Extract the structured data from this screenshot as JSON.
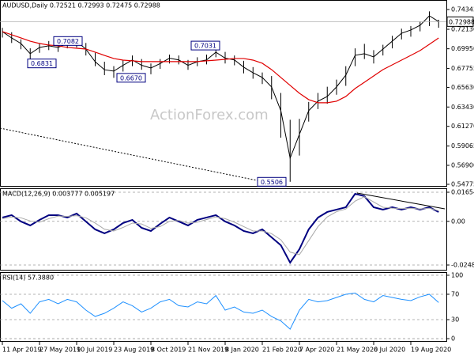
{
  "chart_data": [
    {
      "type": "candlestick",
      "title": "AUDUSD,Daily  0.72521 0.72993 0.72475 0.72988",
      "watermark": "ActionForex.com",
      "color": "#000000",
      "high": [
        0.723,
        0.718,
        0.71,
        0.7,
        0.706,
        0.7082,
        0.706,
        0.709,
        0.7082,
        0.706,
        0.695,
        0.685,
        0.68,
        0.687,
        0.692,
        0.688,
        0.683,
        0.688,
        0.693,
        0.692,
        0.687,
        0.69,
        0.693,
        0.7031,
        0.696,
        0.692,
        0.686,
        0.679,
        0.673,
        0.669,
        0.65,
        0.62,
        0.621,
        0.64,
        0.65,
        0.657,
        0.665,
        0.68,
        0.7,
        0.705,
        0.698,
        0.704,
        0.714,
        0.722,
        0.725,
        0.73,
        0.7414,
        0.732
      ],
      "low": [
        0.712,
        0.706,
        0.699,
        0.6831,
        0.695,
        0.698,
        0.696,
        0.7,
        0.701,
        0.692,
        0.68,
        0.67,
        0.667,
        0.674,
        0.68,
        0.676,
        0.671,
        0.677,
        0.683,
        0.682,
        0.676,
        0.68,
        0.682,
        0.69,
        0.683,
        0.681,
        0.672,
        0.666,
        0.66,
        0.643,
        0.6,
        0.5506,
        0.58,
        0.618,
        0.632,
        0.638,
        0.648,
        0.658,
        0.68,
        0.688,
        0.683,
        0.692,
        0.7,
        0.71,
        0.713,
        0.719,
        0.725,
        0.723
      ],
      "close": [
        0.7187,
        0.7116,
        0.7054,
        0.694,
        0.701,
        0.7028,
        0.701,
        0.7054,
        0.708,
        0.699,
        0.685,
        0.676,
        0.6745,
        0.681,
        0.687,
        0.681,
        0.678,
        0.683,
        0.689,
        0.687,
        0.681,
        0.685,
        0.687,
        0.6957,
        0.689,
        0.687,
        0.6789,
        0.6727,
        0.6674,
        0.6568,
        0.6302,
        0.5771,
        0.6037,
        0.6302,
        0.6408,
        0.6461,
        0.6568,
        0.67,
        0.6922,
        0.694,
        0.6904,
        0.6992,
        0.708,
        0.7169,
        0.7205,
        0.7258,
        0.7364,
        0.7299
      ],
      "ma": {
        "color": "#e00000",
        "values": [
          0.7187,
          0.7152,
          0.7116,
          0.708,
          0.7054,
          0.7037,
          0.7028,
          0.701,
          0.7001,
          0.6992,
          0.6957,
          0.6921,
          0.6886,
          0.6868,
          0.686,
          0.6851,
          0.6851,
          0.6851,
          0.6851,
          0.6851,
          0.6851,
          0.6851,
          0.686,
          0.6868,
          0.6877,
          0.6886,
          0.6886,
          0.6868,
          0.6833,
          0.6762,
          0.6674,
          0.6585,
          0.6497,
          0.6426,
          0.6391,
          0.6391,
          0.6408,
          0.6461,
          0.655,
          0.662,
          0.6691,
          0.6762,
          0.6815,
          0.6868,
          0.6921,
          0.6975,
          0.7045,
          0.7116
        ]
      },
      "ylim": [
        0.5451,
        0.7541
      ],
      "yticks": [
        {
          "value": 0.74343,
          "label": "0.74343"
        },
        {
          "value": 0.7213,
          "label": "0.72130"
        },
        {
          "value": 0.6995,
          "label": "0.69950"
        },
        {
          "value": 0.67755,
          "label": "0.67755"
        },
        {
          "value": 0.6563,
          "label": "0.65630"
        },
        {
          "value": 0.6343,
          "label": "0.63430"
        },
        {
          "value": 0.6127,
          "label": "0.61270"
        },
        {
          "value": 0.59065,
          "label": "0.59065"
        },
        {
          "value": 0.569,
          "label": "0.56900"
        },
        {
          "value": 0.54775,
          "label": "0.54775"
        }
      ],
      "last_price": 0.72988,
      "annotations": [
        0.7082,
        0.6831,
        {
          "value": 0.667,
          "label": "0.6670"
        },
        0.7031,
        0.5506
      ]
    },
    {
      "type": "line",
      "title": "MACD(12,26,9) 0.003777 0.005197",
      "series": [
        {
          "color": "#000080",
          "values": [
            0.00216,
            0.00351,
            -9e-05,
            -0.00234,
            0.00081,
            0.00351,
            0.00351,
            0.00216,
            0.00441,
            -9e-05,
            -0.00459,
            -0.00684,
            -0.00459,
            -0.00099,
            0.00081,
            -0.00369,
            -0.00549,
            -0.00144,
            0.00216,
            -9e-05,
            -0.00234,
            0.00081,
            0.00216,
            0.00351,
            -9e-05,
            -0.00234,
            -0.00549,
            -0.00684,
            -0.00459,
            -0.00909,
            -0.01359,
            -0.02349,
            -0.01584,
            -0.00459,
            0.00216,
            0.00531,
            0.00666,
            0.00801,
            0.01566,
            0.01431,
            0.00801,
            0.00666,
            0.00801,
            0.00666,
            0.00801,
            0.00666,
            0.00801,
            0.00531
          ]
        },
        {
          "color": "#a8a8a8",
          "values": [
            0.0015,
            0.0025,
            0.002,
            0.0002,
            -0.0005,
            0.0015,
            0.003,
            0.0028,
            0.0032,
            0.002,
            -0.001,
            -0.0045,
            -0.0055,
            -0.0035,
            -0.001,
            -0.0015,
            -0.004,
            -0.003,
            0,
            0.0005,
            -0.001,
            -0.0005,
            0.001,
            0.0025,
            0.0015,
            -0.0005,
            -0.003,
            -0.0055,
            -0.0055,
            -0.007,
            -0.0105,
            -0.0175,
            -0.019,
            -0.011,
            -0.003,
            0.0025,
            0.0055,
            0.007,
            0.0115,
            0.014,
            0.011,
            0.008,
            0.0075,
            0.0072,
            0.0075,
            0.007,
            0.0075,
            0.006
          ]
        }
      ],
      "ylim": [
        -0.02801,
        0.01879
      ],
      "yticks": [
        0.01654,
        {
          "value": 0,
          "label": "0.00"
        },
        -0.02486
      ],
      "grid": true
    },
    {
      "type": "line",
      "title": "RSI(14) 57.3880",
      "categories": [
        "11 Apr 2019",
        null,
        null,
        null,
        "27 May 2019",
        null,
        null,
        null,
        "10 Jul 2019",
        null,
        null,
        null,
        "23 Aug 2019",
        null,
        null,
        null,
        "8 Oct 2019",
        null,
        null,
        null,
        "21 Nov 2019",
        null,
        null,
        null,
        "8 Jan 2020",
        null,
        null,
        null,
        "21 Feb 2020",
        null,
        null,
        null,
        "7 Apr 2020",
        null,
        null,
        null,
        "21 May 2020",
        null,
        null,
        null,
        "6 Jul 2020",
        null,
        null,
        null,
        "19 Aug 2020",
        null,
        null,
        null
      ],
      "series": [
        {
          "color": "#1e90ff",
          "values": [
            60,
            48,
            55,
            40,
            58,
            62,
            55,
            62,
            58,
            45,
            35,
            40,
            48,
            58,
            52,
            42,
            48,
            58,
            62,
            52,
            50,
            58,
            55,
            68,
            45,
            50,
            42,
            40,
            45,
            35,
            28,
            15,
            45,
            62,
            58,
            60,
            65,
            70,
            72,
            62,
            58,
            68,
            65,
            62,
            60,
            66,
            70,
            57
          ]
        }
      ],
      "ylim": [
        -4.9,
        104.9
      ],
      "yticks": [
        100,
        70,
        30,
        0
      ],
      "grid": true
    }
  ]
}
